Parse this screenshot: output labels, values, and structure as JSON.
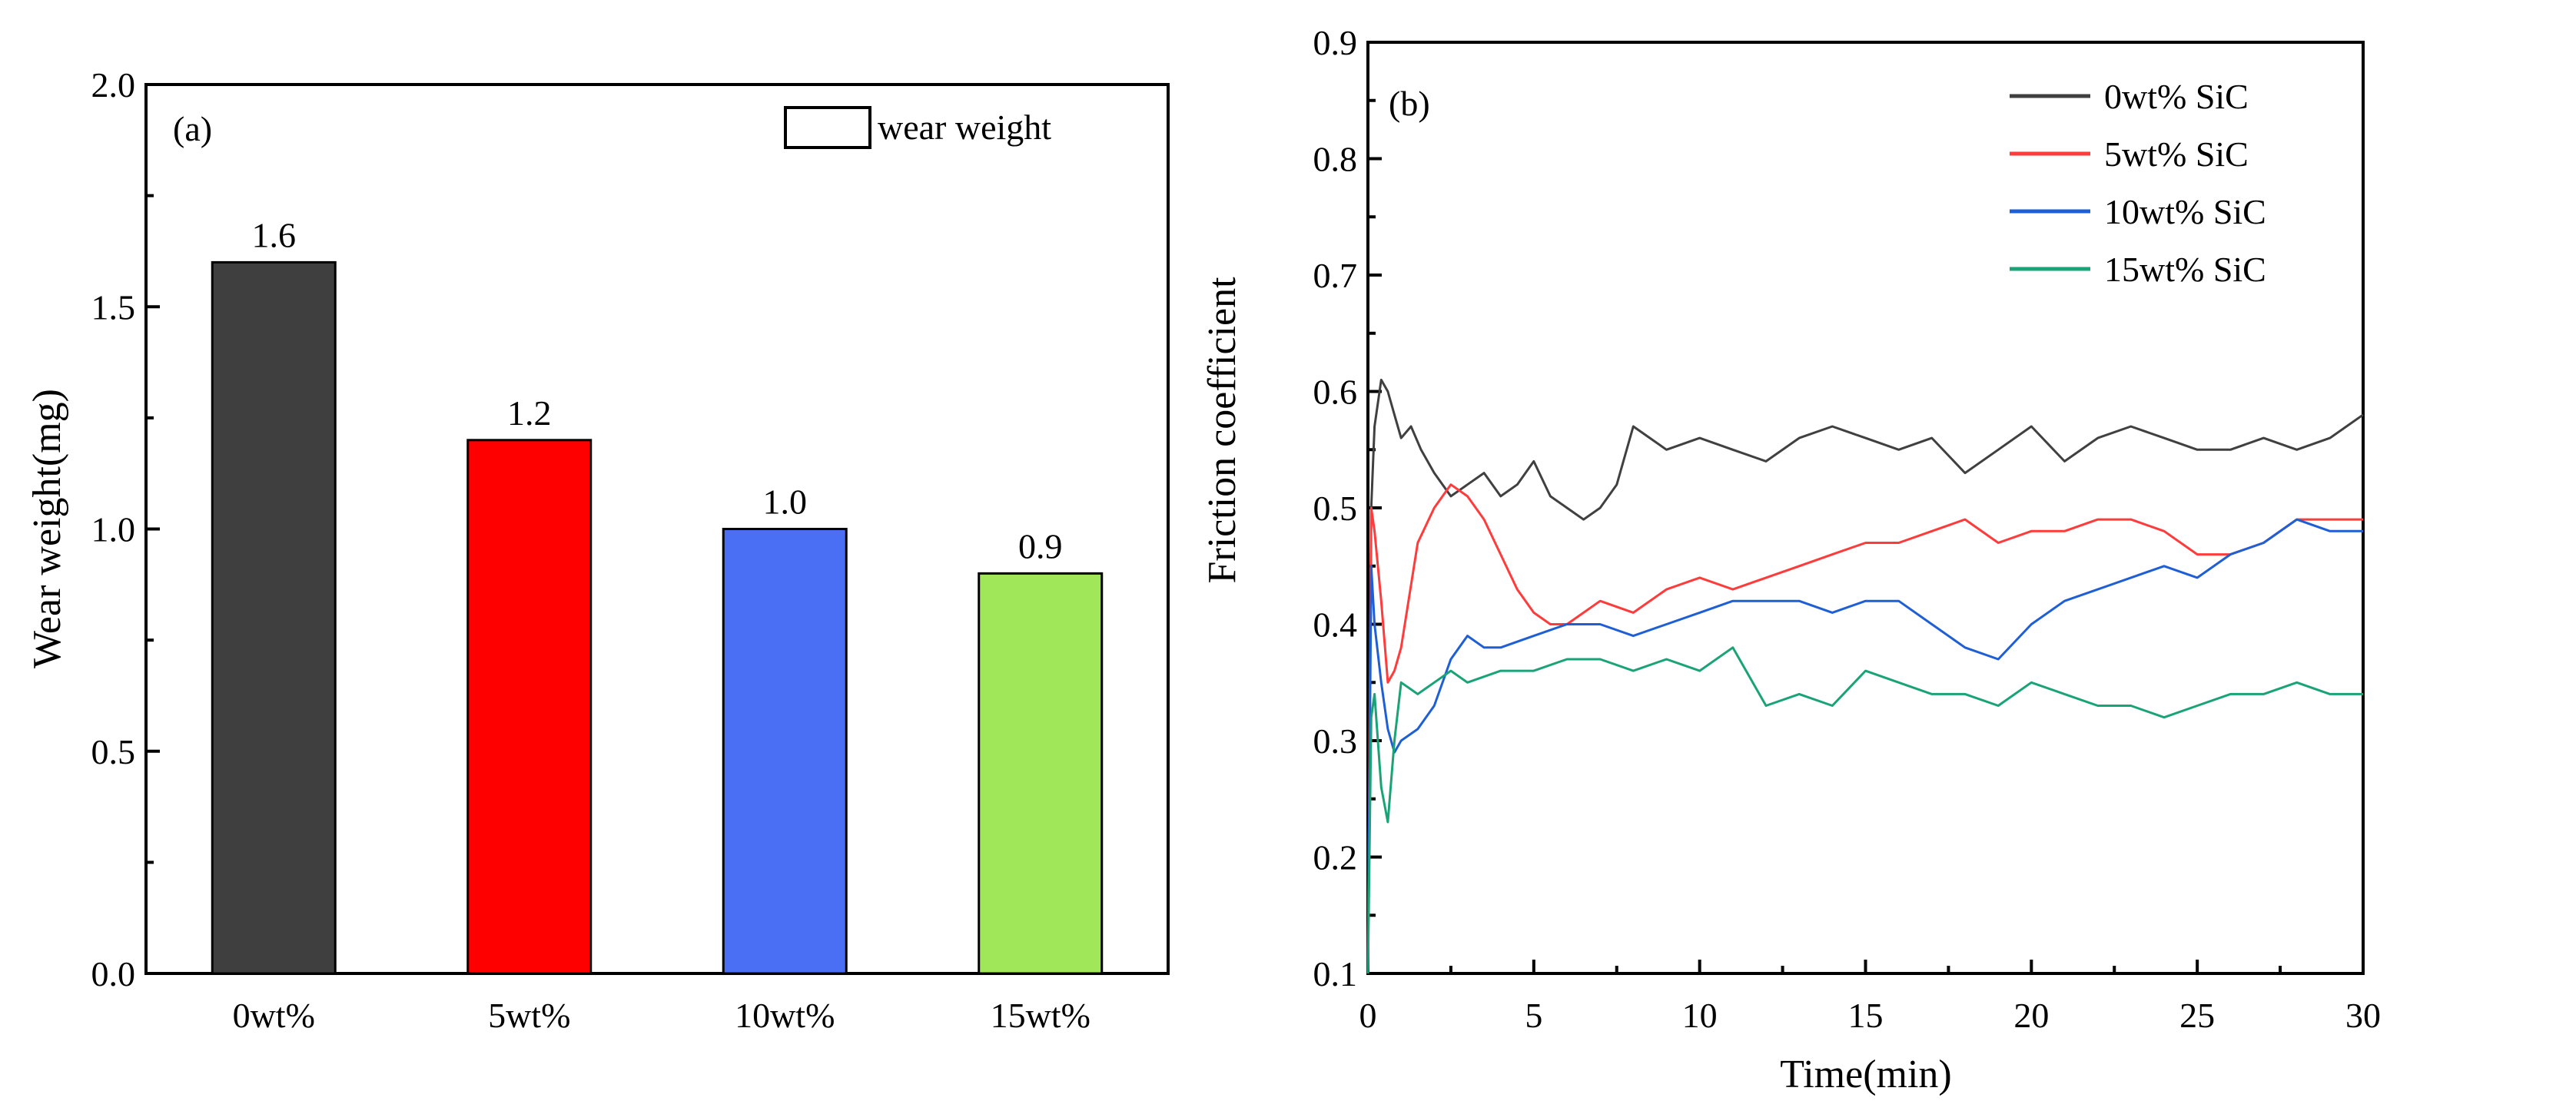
{
  "chart_data": [
    {
      "panel": "(a)",
      "type": "bar",
      "categories": [
        "0wt%",
        "5wt%",
        "10wt%",
        "15wt%"
      ],
      "values": [
        1.6,
        1.2,
        1.0,
        0.9
      ],
      "value_labels": [
        "1.6",
        "1.2",
        "1.0",
        "0.9"
      ],
      "colors": [
        "#3f3f3f",
        "#ff0000",
        "#4a6ff5",
        "#a0e85a"
      ],
      "legend": "wear weight",
      "xlabel": "",
      "ylabel": "Wear weight(mg)",
      "ylim": [
        0.0,
        2.0
      ],
      "yticks": [
        "0.0",
        "0.5",
        "1.0",
        "1.5",
        "2.0"
      ]
    },
    {
      "panel": "(b)",
      "type": "line",
      "xlabel": "Time(min)",
      "ylabel": "Friction coefficient",
      "xlim": [
        0,
        30
      ],
      "ylim": [
        0.1,
        0.9
      ],
      "xticks": [
        "0",
        "5",
        "10",
        "15",
        "20",
        "25",
        "30"
      ],
      "yticks": [
        "0.1",
        "0.2",
        "0.3",
        "0.4",
        "0.5",
        "0.6",
        "0.7",
        "0.8",
        "0.9"
      ],
      "series": [
        {
          "name": "0wt% SiC",
          "color": "#404040",
          "x": [
            0,
            0.1,
            0.2,
            0.4,
            0.6,
            0.8,
            1.0,
            1.3,
            1.6,
            2.0,
            2.5,
            3.0,
            3.5,
            4.0,
            4.5,
            5.0,
            5.5,
            6.0,
            6.5,
            7.0,
            7.5,
            8.0,
            8.5,
            9.0,
            10,
            11,
            12,
            13,
            14,
            15,
            16,
            17,
            18,
            19,
            20,
            21,
            22,
            23,
            24,
            25,
            26,
            27,
            28,
            29,
            30
          ],
          "y": [
            0.1,
            0.5,
            0.57,
            0.61,
            0.6,
            0.58,
            0.56,
            0.57,
            0.55,
            0.53,
            0.51,
            0.52,
            0.53,
            0.51,
            0.52,
            0.54,
            0.51,
            0.5,
            0.49,
            0.5,
            0.52,
            0.57,
            0.56,
            0.55,
            0.56,
            0.55,
            0.54,
            0.56,
            0.57,
            0.56,
            0.55,
            0.56,
            0.53,
            0.55,
            0.57,
            0.54,
            0.56,
            0.57,
            0.56,
            0.55,
            0.55,
            0.56,
            0.55,
            0.56,
            0.58
          ]
        },
        {
          "name": "5wt% SiC",
          "color": "#ff3b3b",
          "x": [
            0,
            0.1,
            0.2,
            0.4,
            0.6,
            0.8,
            1.0,
            1.5,
            2.0,
            2.5,
            3.0,
            3.5,
            4.0,
            4.5,
            5.0,
            5.5,
            6.0,
            7.0,
            8.0,
            9.0,
            10,
            11,
            12,
            13,
            14,
            15,
            16,
            17,
            18,
            19,
            20,
            21,
            22,
            23,
            24,
            25,
            26,
            27,
            28,
            29,
            30
          ],
          "y": [
            0.1,
            0.5,
            0.48,
            0.42,
            0.35,
            0.36,
            0.38,
            0.47,
            0.5,
            0.52,
            0.51,
            0.49,
            0.46,
            0.43,
            0.41,
            0.4,
            0.4,
            0.42,
            0.41,
            0.43,
            0.44,
            0.43,
            0.44,
            0.45,
            0.46,
            0.47,
            0.47,
            0.48,
            0.49,
            0.47,
            0.48,
            0.48,
            0.49,
            0.49,
            0.48,
            0.46,
            0.46,
            0.47,
            0.49,
            0.49,
            0.49
          ]
        },
        {
          "name": "10wt% SiC",
          "color": "#1f5fd6",
          "x": [
            0,
            0.1,
            0.2,
            0.4,
            0.6,
            0.8,
            1.0,
            1.5,
            2.0,
            2.5,
            3.0,
            3.5,
            4.0,
            5.0,
            6.0,
            7.0,
            8.0,
            9.0,
            10,
            11,
            12,
            13,
            14,
            15,
            16,
            17,
            18,
            19,
            20,
            21,
            22,
            23,
            24,
            25,
            26,
            27,
            28,
            29,
            30
          ],
          "y": [
            0.1,
            0.45,
            0.4,
            0.35,
            0.31,
            0.29,
            0.3,
            0.31,
            0.33,
            0.37,
            0.39,
            0.38,
            0.38,
            0.39,
            0.4,
            0.4,
            0.39,
            0.4,
            0.41,
            0.42,
            0.42,
            0.42,
            0.41,
            0.42,
            0.42,
            0.4,
            0.38,
            0.37,
            0.4,
            0.42,
            0.43,
            0.44,
            0.45,
            0.44,
            0.46,
            0.47,
            0.49,
            0.48,
            0.48
          ]
        },
        {
          "name": "15wt% SiC",
          "color": "#1aa377",
          "x": [
            0,
            0.1,
            0.2,
            0.4,
            0.6,
            0.8,
            1.0,
            1.5,
            2.0,
            2.5,
            3.0,
            4.0,
            5.0,
            6.0,
            7.0,
            8.0,
            9.0,
            10,
            11,
            12,
            13,
            14,
            15,
            16,
            17,
            18,
            19,
            20,
            21,
            22,
            23,
            24,
            25,
            26,
            27,
            28,
            29,
            30
          ],
          "y": [
            0.1,
            0.32,
            0.34,
            0.26,
            0.23,
            0.3,
            0.35,
            0.34,
            0.35,
            0.36,
            0.35,
            0.36,
            0.36,
            0.37,
            0.37,
            0.36,
            0.37,
            0.36,
            0.38,
            0.33,
            0.34,
            0.33,
            0.36,
            0.35,
            0.34,
            0.34,
            0.33,
            0.35,
            0.34,
            0.33,
            0.33,
            0.32,
            0.33,
            0.34,
            0.34,
            0.35,
            0.34,
            0.34
          ]
        }
      ]
    }
  ]
}
